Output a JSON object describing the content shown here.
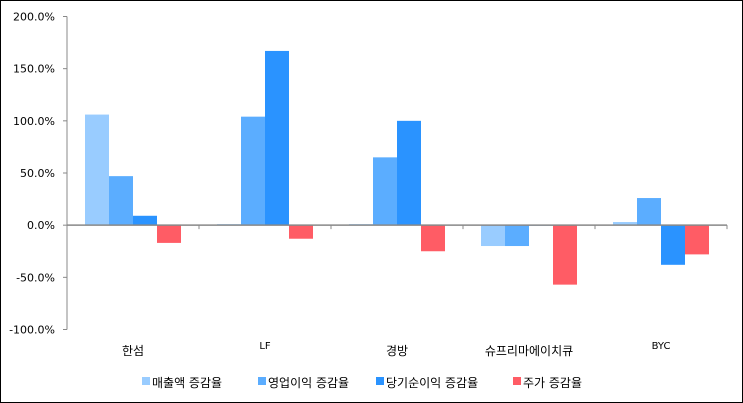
{
  "chart_data": {
    "type": "bar",
    "title": "",
    "xlabel": "",
    "ylabel": "",
    "ylim": [
      -100,
      200
    ],
    "yticks": [
      -100,
      -50,
      0,
      50,
      100,
      150,
      200
    ],
    "ytick_labels": [
      "-100.0%",
      "-50.0%",
      "0.0%",
      "50.0%",
      "100.0%",
      "150.0%",
      "200.0%"
    ],
    "grid": false,
    "legend_position": "bottom",
    "categories": [
      "한섬",
      "LF",
      "경방",
      "슈프리마에이치큐",
      "BYC"
    ],
    "series": [
      {
        "name": "매출액 증감율",
        "color": "#99ccff",
        "values": [
          106,
          1,
          1,
          -20,
          3
        ]
      },
      {
        "name": "영업이익 증감율",
        "color": "#5badff",
        "values": [
          47,
          104,
          65,
          -20,
          26
        ]
      },
      {
        "name": "당기순이익 증감율",
        "color": "#2a93ff",
        "values": [
          9,
          167,
          100,
          0,
          -38
        ]
      },
      {
        "name": "주가 증감율",
        "color": "#ff5c65",
        "values": [
          -17,
          -13,
          -25,
          -57,
          -28
        ]
      }
    ]
  }
}
